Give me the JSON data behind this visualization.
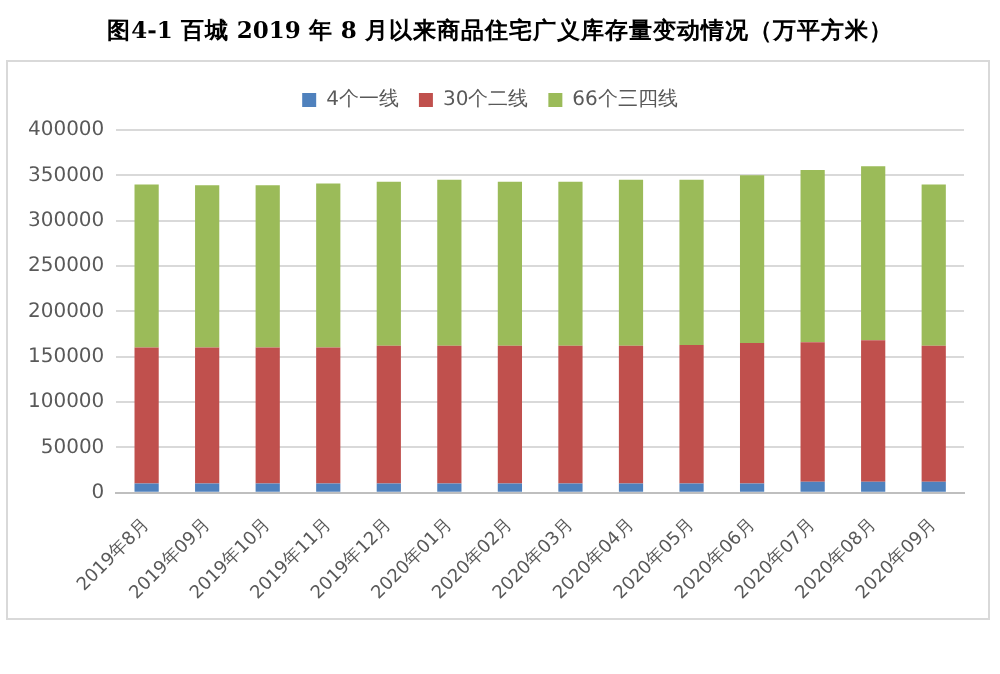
{
  "chart_data": {
    "type": "bar",
    "title": "图4-1 百城 2019 年 8 月以来商品住宅广义库存量变动情况（万平方米）",
    "categories": [
      "2019年8月",
      "2019年09月",
      "2019年10月",
      "2019年11月",
      "2019年12月",
      "2020年01月",
      "2020年02月",
      "2020年03月",
      "2020年04月",
      "2020年05月",
      "2020年06月",
      "2020年07月",
      "2020年08月",
      "2020年09月"
    ],
    "series": [
      {
        "name": "4个一线",
        "color": "#4f81bd",
        "values": [
          10000,
          10000,
          10000,
          10000,
          10000,
          10000,
          10000,
          10000,
          10000,
          10000,
          10000,
          12000,
          12000,
          12000
        ]
      },
      {
        "name": "30个二线",
        "color": "#c0504d",
        "values": [
          150000,
          150000,
          150000,
          150000,
          152000,
          152000,
          152000,
          152000,
          152000,
          153000,
          155000,
          154000,
          156000,
          150000
        ]
      },
      {
        "name": "66个三四线",
        "color": "#9bbb59",
        "values": [
          180000,
          179000,
          179000,
          181000,
          181000,
          183000,
          181000,
          181000,
          183000,
          182000,
          185000,
          190000,
          192000,
          178000
        ]
      }
    ],
    "stacked": true,
    "ylim": [
      0,
      400000
    ],
    "yticks": [
      0,
      50000,
      100000,
      150000,
      200000,
      250000,
      300000,
      350000,
      400000
    ],
    "grid": "y",
    "legend": "top"
  }
}
